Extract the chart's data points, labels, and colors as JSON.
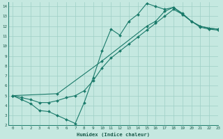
{
  "xlabel": "Humidex (Indice chaleur)",
  "bg_color": "#c5e8e0",
  "grid_color": "#9ecfc5",
  "line_color": "#1a7a6a",
  "xlim": [
    -0.5,
    23
  ],
  "ylim": [
    2,
    14.4
  ],
  "xticks": [
    0,
    1,
    2,
    3,
    4,
    5,
    6,
    7,
    8,
    9,
    10,
    11,
    12,
    13,
    14,
    15,
    16,
    17,
    18,
    19,
    20,
    21,
    22,
    23
  ],
  "yticks": [
    2,
    3,
    4,
    5,
    6,
    7,
    8,
    9,
    10,
    11,
    12,
    13,
    14
  ],
  "line1_x": [
    0,
    1,
    2,
    3,
    4,
    5,
    6,
    7,
    8,
    9,
    10,
    11,
    12,
    13,
    14,
    15,
    16,
    17,
    18,
    19,
    20,
    21,
    22,
    23
  ],
  "line1_y": [
    5.0,
    4.6,
    4.2,
    3.5,
    3.4,
    3.0,
    2.6,
    2.2,
    4.3,
    6.8,
    9.5,
    11.7,
    11.1,
    12.5,
    13.2,
    14.3,
    14.0,
    13.7,
    13.9,
    13.2,
    12.5,
    12.0,
    11.8,
    11.7
  ],
  "line2_x": [
    0,
    5,
    10,
    15,
    16,
    17,
    18,
    19,
    20,
    21,
    22,
    23
  ],
  "line2_y": [
    5.0,
    5.2,
    8.5,
    12.0,
    12.5,
    13.5,
    13.9,
    13.3,
    12.5,
    12.0,
    11.8,
    11.7
  ],
  "line3_x": [
    0,
    1,
    2,
    3,
    4,
    5,
    6,
    7,
    8,
    9,
    10,
    11,
    12,
    13,
    14,
    15,
    16,
    17,
    18,
    19,
    20,
    21,
    22,
    23
  ],
  "line3_y": [
    5.0,
    4.8,
    4.6,
    4.3,
    4.3,
    4.5,
    4.8,
    5.0,
    5.5,
    6.5,
    7.8,
    8.8,
    9.5,
    10.2,
    10.9,
    11.6,
    12.3,
    13.0,
    13.7,
    13.2,
    12.5,
    11.9,
    11.7,
    11.6
  ]
}
